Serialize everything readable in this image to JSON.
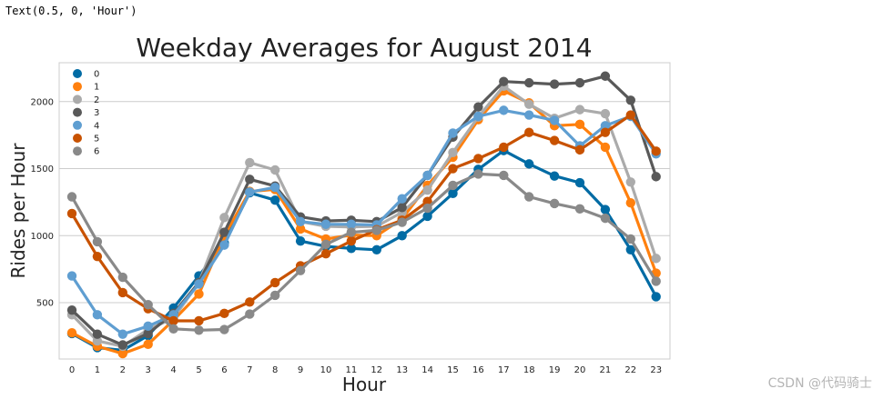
{
  "output_text": "Text(0.5, 0, 'Hour')",
  "watermark": "CSDN @代码骑士",
  "chart_data": {
    "type": "line",
    "title": "Weekday Averages for August 2014",
    "xlabel": "Hour",
    "ylabel": "Rides per Hour",
    "categories": [
      "0",
      "1",
      "2",
      "3",
      "4",
      "5",
      "6",
      "7",
      "8",
      "9",
      "10",
      "11",
      "12",
      "13",
      "14",
      "15",
      "16",
      "17",
      "18",
      "19",
      "20",
      "21",
      "22",
      "23"
    ],
    "yticks": [
      500,
      1000,
      1500,
      2000
    ],
    "ylim": [
      80,
      2290
    ],
    "grid": true,
    "legend_position": "top-left",
    "series": [
      {
        "name": "0",
        "color": "#006ba4",
        "values": [
          270,
          165,
          145,
          255,
          460,
          700,
          945,
          1320,
          1265,
          960,
          920,
          905,
          895,
          1000,
          1145,
          1315,
          1495,
          1635,
          1535,
          1445,
          1395,
          1195,
          895,
          545
        ]
      },
      {
        "name": "1",
        "color": "#ff800e",
        "values": [
          275,
          175,
          120,
          190,
          370,
          565,
          1000,
          1330,
          1345,
          1050,
          975,
          1005,
          1000,
          1125,
          1375,
          1585,
          1865,
          2080,
          1990,
          1820,
          1830,
          1660,
          1245,
          720
        ]
      },
      {
        "name": "2",
        "color": "#ababab",
        "values": [
          410,
          215,
          175,
          300,
          385,
          650,
          1135,
          1545,
          1490,
          1105,
          1070,
          1065,
          1070,
          1175,
          1340,
          1620,
          1885,
          2115,
          1980,
          1875,
          1940,
          1910,
          1400,
          830
        ]
      },
      {
        "name": "3",
        "color": "#595959",
        "values": [
          445,
          265,
          185,
          270,
          420,
          650,
          1025,
          1420,
          1370,
          1140,
          1110,
          1115,
          1105,
          1210,
          1450,
          1735,
          1960,
          2150,
          2140,
          2130,
          2140,
          2190,
          2010,
          1440
        ]
      },
      {
        "name": "4",
        "color": "#5f9ed1",
        "values": [
          700,
          410,
          265,
          325,
          410,
          640,
          930,
          1325,
          1360,
          1105,
          1085,
          1085,
          1080,
          1275,
          1450,
          1765,
          1890,
          1935,
          1900,
          1860,
          1670,
          1820,
          1890,
          1610
        ]
      },
      {
        "name": "5",
        "color": "#c85200",
        "values": [
          1165,
          845,
          575,
          455,
          365,
          365,
          420,
          505,
          650,
          775,
          865,
          960,
          1045,
          1115,
          1255,
          1500,
          1575,
          1660,
          1770,
          1710,
          1640,
          1770,
          1900,
          1630
        ]
      },
      {
        "name": "6",
        "color": "#898989",
        "values": [
          1290,
          955,
          690,
          485,
          305,
          295,
          300,
          415,
          555,
          740,
          935,
          1025,
          1040,
          1100,
          1205,
          1375,
          1460,
          1450,
          1290,
          1240,
          1200,
          1130,
          975,
          660
        ]
      }
    ]
  }
}
